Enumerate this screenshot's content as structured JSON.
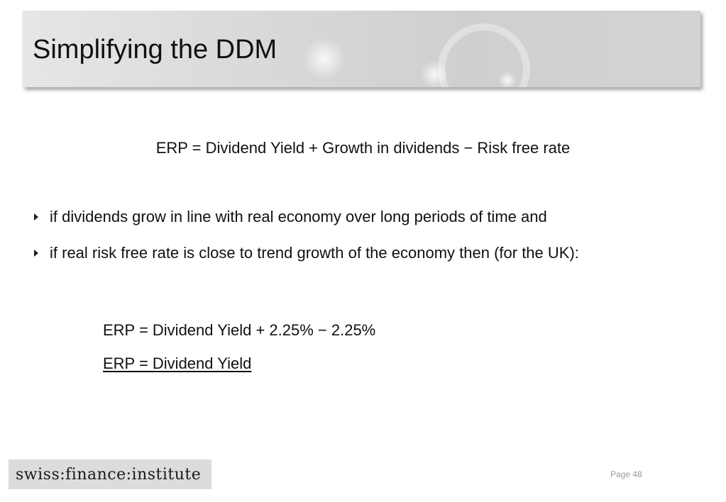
{
  "slide": {
    "title": "Simplifying the DDM",
    "main_formula": "ERP = Dividend Yield + Growth in dividends − Risk free rate",
    "bullets": [
      {
        "text": "if dividends grow in line with real economy over long periods of time and",
        "icon": "triangle-right-icon"
      },
      {
        "text": "if real risk free rate is close to trend growth of the economy then (for the UK):",
        "icon": "triangle-right-icon"
      }
    ],
    "result_lines": [
      "ERP = Dividend Yield + 2.25% − 2.25%",
      "ERP = Dividend Yield"
    ]
  },
  "footer": {
    "logo_text": "swiss:finance:institute",
    "page_label": "Page 48"
  },
  "colors": {
    "title_bar": "#d9d9d9",
    "logo_box": "#dcdcdc",
    "page_number": "#9a9a9a",
    "text": "#111111"
  }
}
